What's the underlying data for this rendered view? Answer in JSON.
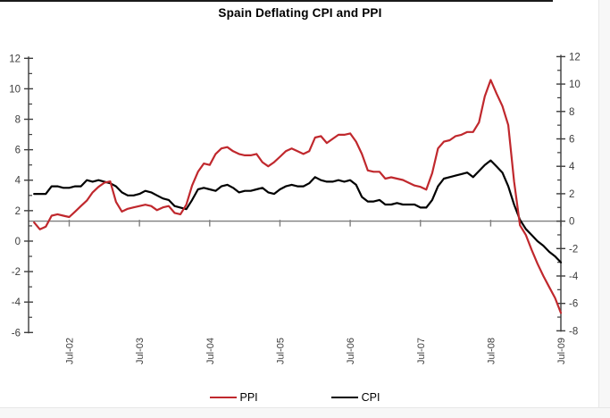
{
  "chart_data": {
    "type": "line",
    "title": "Spain Deflating CPI and PPI",
    "frequency": "monthly",
    "x_range": [
      "Jan-02",
      "Jul-09"
    ],
    "points_per_series": 91,
    "x_tick_labels": [
      "Jul-02",
      "Jul-03",
      "Jul-04",
      "Jul-05",
      "Jul-06",
      "Jul-07",
      "Jul-08",
      "Jul-09"
    ],
    "grid": false,
    "legend_position": "bottom",
    "zero_line": {
      "axis": "right",
      "value": 0,
      "color": "#7f7f7f"
    },
    "left_axis": {
      "series": "CPI",
      "ylim": [
        -6,
        12
      ],
      "ticks": [
        12,
        10,
        8,
        6,
        4,
        2,
        0,
        -2,
        -4,
        -6
      ]
    },
    "right_axis": {
      "series": "PPI",
      "ylim": [
        -8,
        12
      ],
      "ticks": [
        12,
        10,
        8,
        6,
        4,
        2,
        0,
        -2,
        -4,
        -6,
        -8
      ]
    },
    "series": [
      {
        "name": "PPI",
        "axis": "right",
        "color": "#c0282d",
        "values": [
          -0.1,
          -0.6,
          -0.4,
          0.4,
          0.5,
          0.4,
          0.3,
          0.7,
          1.1,
          1.5,
          2.1,
          2.5,
          2.8,
          2.9,
          1.4,
          0.7,
          0.9,
          1.0,
          1.1,
          1.2,
          1.1,
          0.8,
          1.0,
          1.1,
          0.6,
          0.5,
          1.2,
          2.6,
          3.6,
          4.2,
          4.1,
          4.9,
          5.3,
          5.4,
          5.1,
          4.9,
          4.8,
          4.8,
          4.9,
          4.3,
          4.0,
          4.3,
          4.7,
          5.1,
          5.3,
          5.1,
          4.9,
          5.1,
          6.1,
          6.2,
          5.7,
          6.0,
          6.3,
          6.3,
          6.4,
          5.8,
          4.9,
          3.7,
          3.6,
          3.6,
          3.1,
          3.2,
          3.1,
          3.0,
          2.8,
          2.6,
          2.5,
          2.3,
          3.5,
          5.3,
          5.8,
          5.9,
          6.2,
          6.3,
          6.5,
          6.5,
          7.2,
          9.1,
          10.3,
          9.3,
          8.4,
          7.0,
          2.9,
          -0.3,
          -1.0,
          -2.1,
          -3.1,
          -4.0,
          -4.8,
          -5.6,
          -6.7
        ]
      },
      {
        "name": "CPI",
        "axis": "left",
        "color": "#000000",
        "values": [
          3.1,
          3.1,
          3.1,
          3.6,
          3.6,
          3.5,
          3.5,
          3.6,
          3.6,
          4.0,
          3.9,
          4.0,
          3.9,
          3.8,
          3.6,
          3.2,
          3.0,
          3.0,
          3.1,
          3.3,
          3.2,
          3.0,
          2.8,
          2.7,
          2.3,
          2.2,
          2.1,
          2.7,
          3.4,
          3.5,
          3.4,
          3.3,
          3.6,
          3.7,
          3.5,
          3.2,
          3.3,
          3.3,
          3.4,
          3.5,
          3.2,
          3.1,
          3.4,
          3.6,
          3.7,
          3.6,
          3.6,
          3.8,
          4.2,
          4.0,
          3.9,
          3.9,
          4.0,
          3.9,
          4.0,
          3.7,
          2.9,
          2.6,
          2.6,
          2.7,
          2.4,
          2.4,
          2.5,
          2.4,
          2.4,
          2.4,
          2.2,
          2.2,
          2.7,
          3.6,
          4.1,
          4.2,
          4.3,
          4.4,
          4.5,
          4.2,
          4.6,
          5.0,
          5.3,
          4.9,
          4.5,
          3.6,
          2.4,
          1.4,
          0.8,
          0.4,
          0.0,
          -0.3,
          -0.7,
          -1.0,
          -1.4
        ]
      }
    ]
  }
}
